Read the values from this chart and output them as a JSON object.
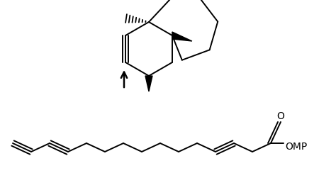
{
  "bg_color": "#ffffff",
  "line_color": "#000000",
  "line_width": 1.4,
  "omp_label": "OMP",
  "oxygen_label": "O"
}
